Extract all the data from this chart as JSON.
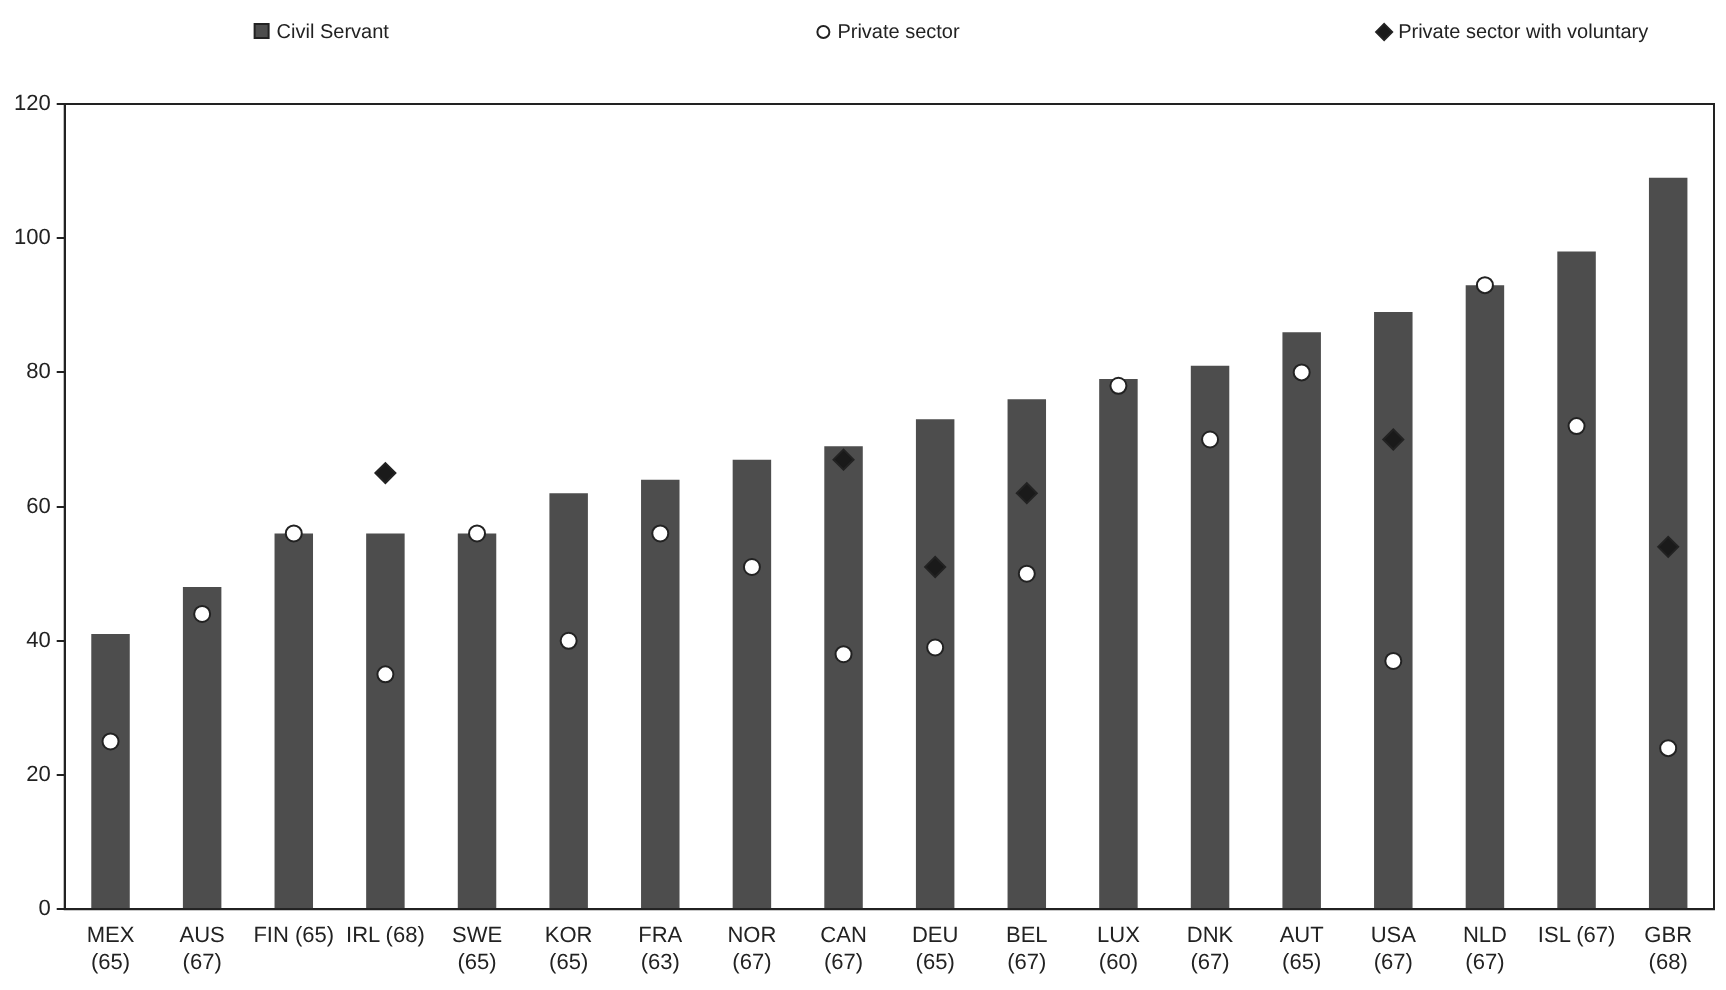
{
  "chart_data": {
    "type": "bar",
    "categories": [
      "MEX\n(65)",
      "AUS\n(67)",
      "FIN (65)",
      "IRL (68)",
      "SWE\n(65)",
      "KOR\n(65)",
      "FRA\n(63)",
      "NOR\n(67)",
      "CAN\n(67)",
      "DEU\n(65)",
      "BEL\n(67)",
      "LUX\n(60)",
      "DNK\n(67)",
      "AUT\n(65)",
      "USA\n(67)",
      "NLD\n(67)",
      "ISL (67)",
      "GBR\n(68)"
    ],
    "series": [
      {
        "name": "Civil Servant",
        "color": "#4d4d4d",
        "values": [
          41,
          48,
          56,
          56,
          56,
          62,
          64,
          67,
          69,
          73,
          76,
          79,
          81,
          86,
          89,
          93,
          98,
          109
        ]
      },
      {
        "name": "Private sector",
        "type": "scatter",
        "marker": "circle",
        "color": "#ffffff",
        "values": [
          25,
          44,
          56,
          35,
          56,
          40,
          56,
          51,
          38,
          39,
          50,
          78,
          70,
          80,
          37,
          93,
          72,
          24
        ]
      },
      {
        "name": "Private sector with voluntary",
        "type": "scatter",
        "marker": "diamond",
        "color": "#1a1a1a",
        "values": [
          null,
          null,
          null,
          65,
          null,
          null,
          null,
          null,
          67,
          51,
          62,
          null,
          null,
          null,
          70,
          null,
          null,
          54
        ]
      }
    ],
    "ylim": [
      0,
      120
    ],
    "yticks": [
      0,
      20,
      40,
      60,
      80,
      100,
      120
    ],
    "grid": false,
    "legend": "top"
  }
}
